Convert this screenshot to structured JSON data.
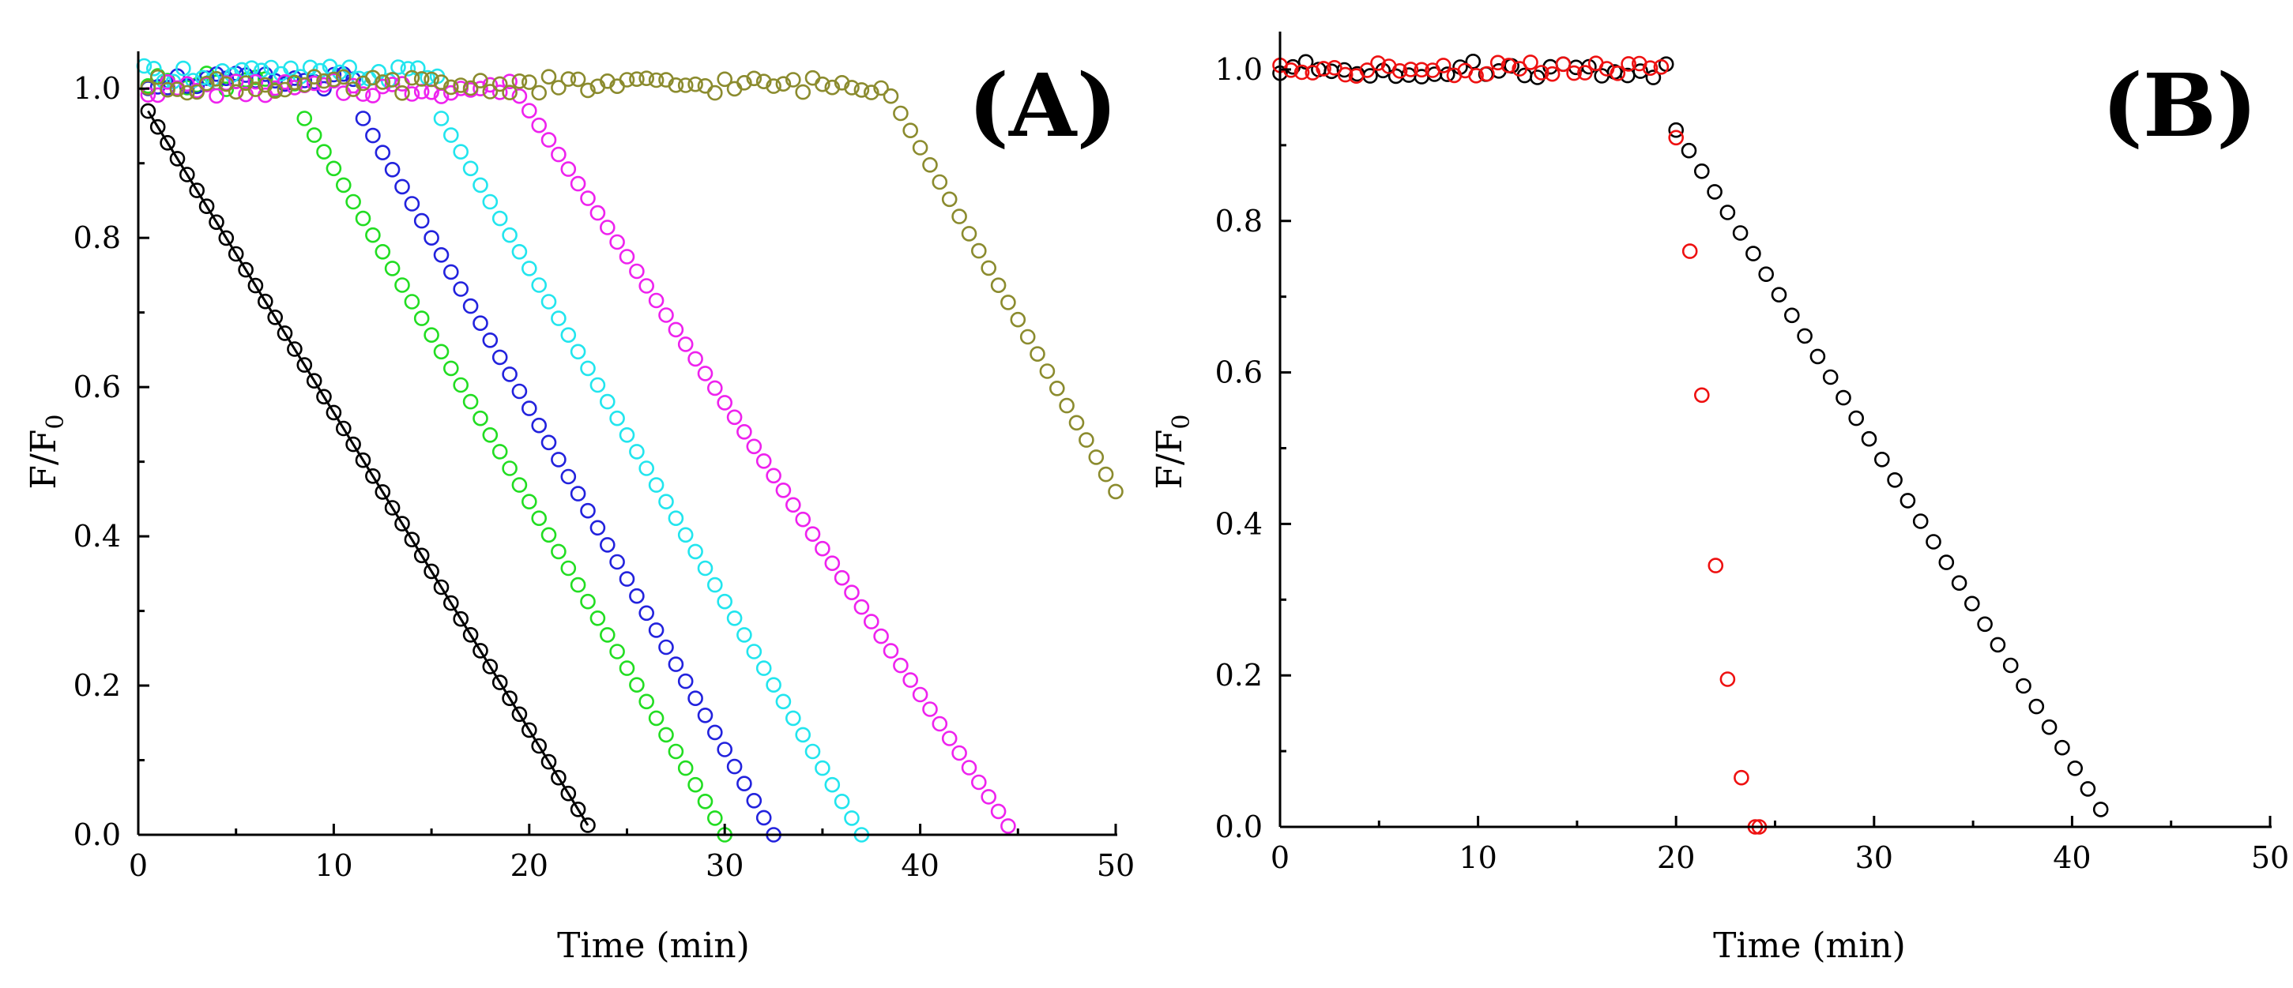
{
  "chart_data": [
    {
      "panel": "(A)",
      "type": "scatter",
      "xlabel": "Time (min)",
      "ylabel_main": "F/F",
      "ylabel_sub": "0",
      "xlim": [
        0,
        50
      ],
      "ylim": [
        0,
        1.05
      ],
      "xticks": [
        0,
        10,
        20,
        30,
        40,
        50
      ],
      "yticks": [
        0.0,
        0.2,
        0.4,
        0.6,
        0.8,
        1.0
      ],
      "ytick_labels": [
        "0.0",
        "0.2",
        "0.4",
        "0.6",
        "0.8",
        "1.0"
      ],
      "legend": "none",
      "series": [
        {
          "name": "black",
          "color": "#000000",
          "marker": "open-circle",
          "fit_line": true,
          "plateau": 1.0,
          "plateau_start": 0.5,
          "decay_start": 0.5,
          "start_value": 0.97,
          "decay_end": 23.3,
          "step": 0.5
        },
        {
          "name": "green",
          "color": "#22dd22",
          "marker": "open-circle",
          "plateau": 1.01,
          "plateau_start": 0.5,
          "decay_start": 8.5,
          "start_value": 0.96,
          "decay_end": 30.0,
          "step": 0.5
        },
        {
          "name": "blue",
          "color": "#2222dd",
          "marker": "open-circle",
          "plateau": 1.01,
          "plateau_start": 0.5,
          "decay_start": 11.5,
          "start_value": 0.96,
          "decay_end": 32.5,
          "step": 0.5
        },
        {
          "name": "cyan",
          "color": "#22e5ee",
          "marker": "open-circle",
          "plateau": 1.02,
          "plateau_start": 0.3,
          "decay_start": 15.5,
          "start_value": 0.96,
          "decay_end": 37.0,
          "step": 0.5
        },
        {
          "name": "magenta",
          "color": "#ee22ee",
          "marker": "open-circle",
          "plateau": 1.0,
          "plateau_start": 0.5,
          "decay_start": 19.5,
          "start_value": 0.99,
          "decay_end": 44.8,
          "step": 0.5
        },
        {
          "name": "olive",
          "color": "#8b8b2e",
          "marker": "open-circle",
          "plateau": 1.005,
          "plateau_start": 0.5,
          "decay_start": 38.5,
          "start_value": 0.99,
          "decay_end": 50.0,
          "end_value": 0.46,
          "step": 0.5
        }
      ]
    },
    {
      "panel": "(B)",
      "type": "scatter",
      "xlabel": "Time (min)",
      "ylabel_main": "F/F",
      "ylabel_sub": "0",
      "xlim": [
        0,
        50
      ],
      "ylim": [
        0,
        1.05
      ],
      "xticks": [
        0,
        10,
        20,
        30,
        40,
        50
      ],
      "yticks": [
        0.0,
        0.2,
        0.4,
        0.6,
        0.8,
        1.0
      ],
      "ytick_labels": [
        "0.0",
        "0.2",
        "0.4",
        "0.6",
        "0.8",
        "1.0"
      ],
      "legend": "none",
      "series": [
        {
          "name": "black",
          "color": "#000000",
          "marker": "open-circle",
          "plateau": 1.0,
          "plateau_start": 0.0,
          "decay_start": 20.0,
          "start_value": 0.92,
          "decay_end": 42.0,
          "step": 0.65
        },
        {
          "name": "red",
          "color": "#ee1111",
          "marker": "open-circle",
          "plateau": 1.0,
          "plateau_start": 0.0,
          "plateau_end": 19.5,
          "points": [
            [
              20.0,
              0.91
            ],
            [
              20.7,
              0.76
            ],
            [
              21.3,
              0.57
            ],
            [
              22.0,
              0.345
            ],
            [
              22.6,
              0.195
            ],
            [
              23.3,
              0.065
            ],
            [
              24.0,
              0.0
            ],
            [
              24.2,
              0.0
            ]
          ],
          "step": 0.55
        }
      ]
    }
  ]
}
